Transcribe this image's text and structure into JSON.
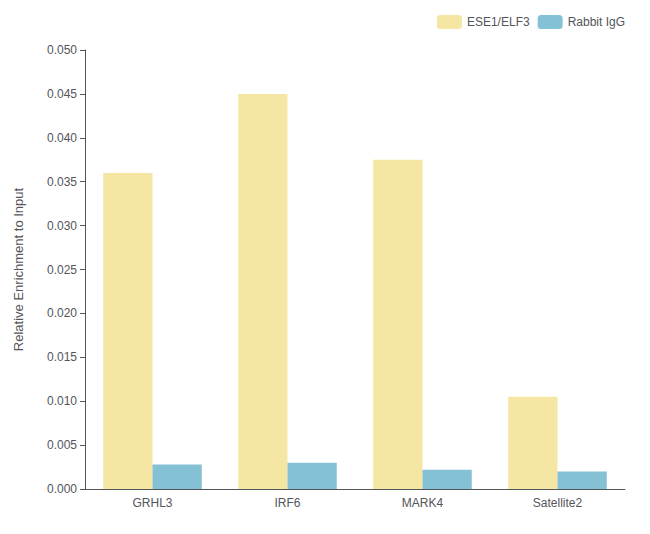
{
  "chart_data": {
    "type": "bar",
    "categories": [
      "GRHL3",
      "IRF6",
      "MARK4",
      "Satellite2"
    ],
    "series": [
      {
        "name": "ESE1/ELF3",
        "color": "#F5E6A3",
        "values": [
          0.036,
          0.045,
          0.0375,
          0.0105
        ]
      },
      {
        "name": "Rabbit IgG",
        "color": "#85C1D4",
        "values": [
          0.0028,
          0.003,
          0.0022,
          0.002
        ]
      }
    ],
    "ylabel": "Relative Enrichment to Input",
    "ylim": [
      0.0,
      0.05
    ],
    "yticks": [
      {
        "value": 0.0,
        "label": "0.000"
      },
      {
        "value": 0.005,
        "label": "0.005"
      },
      {
        "value": 0.01,
        "label": "0.010"
      },
      {
        "value": 0.015,
        "label": "0.015"
      },
      {
        "value": 0.02,
        "label": "0.020"
      },
      {
        "value": 0.025,
        "label": "0.025"
      },
      {
        "value": 0.03,
        "label": "0.030"
      },
      {
        "value": 0.035,
        "label": "0.035"
      },
      {
        "value": 0.04,
        "label": "0.040"
      },
      {
        "value": 0.045,
        "label": "0.045"
      },
      {
        "value": 0.05,
        "label": "0.050"
      }
    ],
    "grid": false,
    "legend": "upper right"
  }
}
